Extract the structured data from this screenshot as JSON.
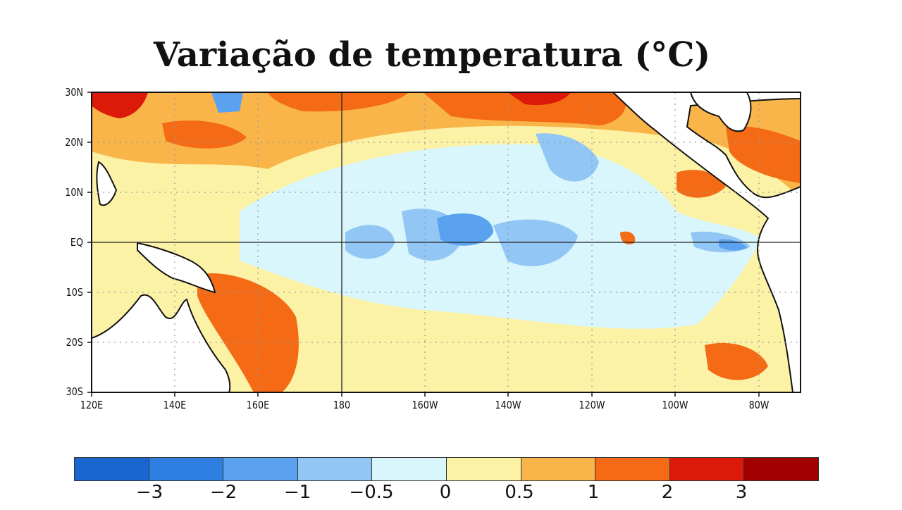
{
  "title": "Variação de temperatura (°C)",
  "map": {
    "lat_labels": [
      "30N",
      "20N",
      "10N",
      "EQ",
      "10S",
      "20S",
      "30S"
    ],
    "lon_labels": [
      "120E",
      "140E",
      "160E",
      "180",
      "160W",
      "140W",
      "120W",
      "100W",
      "80W"
    ],
    "lon_range": [
      "120E",
      "70W"
    ],
    "lat_range": [
      "30S",
      "30N"
    ],
    "grid": "dotted",
    "bold_reference_lines": [
      "EQ",
      "180"
    ]
  },
  "legend": {
    "colors": [
      "#1a66d1",
      "#2f7fe3",
      "#5aa2ef",
      "#92c6f5",
      "#d8f6fb",
      "#fcf2a6",
      "#f9b54a",
      "#f56a14",
      "#dc1a0a",
      "#a00000"
    ],
    "tick_labels": [
      "−3",
      "−2",
      "−1",
      "−0.5",
      "0",
      "0.5",
      "1",
      "2",
      "3"
    ]
  }
}
